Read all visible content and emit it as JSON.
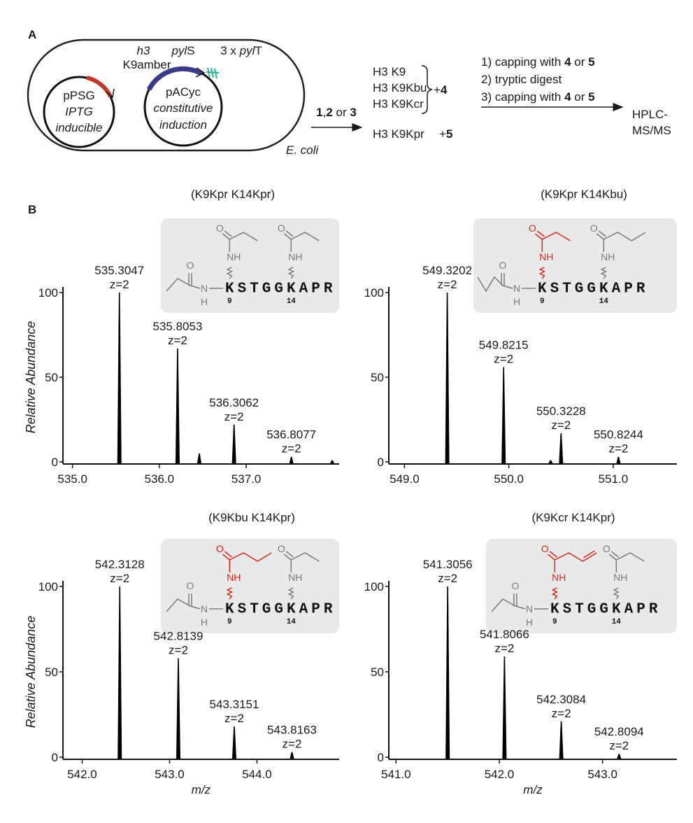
{
  "panel_a": {
    "label": "A",
    "plasmid_1": {
      "gene_italic": "h3",
      "gene": "K9amber",
      "name": "pPSG",
      "note_1": "IPTG",
      "note_2": "inducible"
    },
    "plasmid_2": {
      "gene_1": [
        "pyl",
        "S"
      ],
      "gene_2": [
        "3 x ",
        "pyl",
        "T"
      ],
      "name": "pACyc",
      "note_1": "constitutive",
      "note_2": "induction"
    },
    "organism": "E. coli",
    "reagents": [
      "1",
      ",",
      "2",
      " or ",
      "3"
    ],
    "products": [
      "H3 K9",
      "H3 K9Kbu",
      "H3 K9Kcr"
    ],
    "products_cap": [
      "+",
      "4"
    ],
    "kpr_product": "H3 K9Kpr",
    "kpr_cap": [
      "+",
      "5"
    ],
    "steps": [
      [
        "1) capping with ",
        "4",
        " or ",
        "5"
      ],
      [
        "2) tryptic digest"
      ],
      [
        "3) capping with ",
        "4",
        " or ",
        "5"
      ]
    ],
    "detection": [
      "HPLC-",
      "MS/MS"
    ]
  },
  "panel_b_label": "B",
  "chart_data": [
    {
      "type": "spectrum",
      "title": "(K9Kpr K14Kpr)",
      "color": "#000000",
      "highlight_color": null,
      "x": [
        535.54,
        536.21,
        536.46,
        536.86,
        537.52,
        537.99
      ],
      "values": [
        100,
        67,
        5,
        22,
        3,
        1
      ],
      "peak_labels": [
        "535.3047",
        "535.8053",
        null,
        "536.3062",
        "536.8077",
        null
      ],
      "charge_labels": [
        "z=2",
        "z=2",
        null,
        "z=2",
        "z=2",
        null
      ],
      "xlim": [
        534.89,
        538.07
      ],
      "xticks": [
        {
          "value": 535,
          "label": "535.0"
        },
        {
          "value": 536,
          "label": "536.0"
        },
        {
          "value": 537,
          "label": "537.0"
        }
      ],
      "ylim": [
        0,
        100
      ],
      "yticks": [
        0,
        50,
        100
      ],
      "ylabel": "Relative Abundance",
      "inset": {
        "sequence": "KSTGGKAPR",
        "sites": [
          "9",
          "14"
        ],
        "atoms": [
          "O",
          "NH",
          "O",
          "NH",
          "O",
          "N",
          "H"
        ]
      }
    },
    {
      "type": "spectrum",
      "title": "(K9Kpr K14Kbu)",
      "color": "#000000",
      "highlight_color": "#e0241b",
      "x": [
        549.41,
        549.95,
        550.4,
        550.5,
        551.05
      ],
      "values": [
        100,
        56,
        1,
        17,
        3
      ],
      "peak_labels": [
        "549.3202",
        "549.8215",
        null,
        "550.3228",
        "550.8244"
      ],
      "charge_labels": [
        "z=2",
        "z=2",
        null,
        "z=2",
        "z=2"
      ],
      "xlim": [
        548.85,
        551.61
      ],
      "xticks": [
        {
          "value": 549,
          "label": "549.0"
        },
        {
          "value": 550,
          "label": "550.0"
        },
        {
          "value": 551,
          "label": "551.0"
        }
      ],
      "ylim": [
        0,
        100
      ],
      "yticks": [
        0,
        50,
        100
      ],
      "inset": {
        "sequence": "KSTGGKAPR",
        "sites": [
          "9",
          "14"
        ],
        "atoms": [
          "O",
          "NH",
          "O",
          "NH",
          "O",
          "N",
          "H"
        ]
      }
    },
    {
      "type": "spectrum",
      "title": "(K9Kbu K14Kpr)",
      "color": "#000000",
      "highlight_color": "#e0241b",
      "x": [
        542.43,
        543.1,
        543.74,
        544.4
      ],
      "values": [
        100,
        58,
        18,
        3
      ],
      "peak_labels": [
        "542.3128",
        "542.8139",
        "543.3151",
        "543.8163"
      ],
      "charge_labels": [
        "z=2",
        "z=2",
        "z=2",
        "z=2"
      ],
      "xlim": [
        541.78,
        544.94
      ],
      "xticks": [
        {
          "value": 542,
          "label": "542.0"
        },
        {
          "value": 543,
          "label": "543.0"
        },
        {
          "value": 544,
          "label": "544.0"
        }
      ],
      "ylim": [
        0,
        100
      ],
      "yticks": [
        0,
        50,
        100
      ],
      "ylabel": "Relative Abundance",
      "xlabel": "m/z",
      "inset": {
        "sequence": "KSTGGKAPR",
        "sites": [
          "9",
          "14"
        ],
        "atoms": [
          "O",
          "NH",
          "O",
          "NH",
          "O",
          "N",
          "H"
        ]
      }
    },
    {
      "type": "spectrum",
      "title": "(K9Kcr K14Kpr)",
      "color": "#000000",
      "highlight_color": "#e0241b",
      "x": [
        541.5,
        542.05,
        542.6,
        543.16
      ],
      "values": [
        100,
        59,
        21,
        2
      ],
      "peak_labels": [
        "541.3056",
        "541.8066",
        "542.3084",
        "542.8094"
      ],
      "charge_labels": [
        "z=2",
        "z=2",
        "z=2",
        "z=2"
      ],
      "xlim": [
        540.93,
        543.72
      ],
      "xticks": [
        {
          "value": 541,
          "label": "541.0"
        },
        {
          "value": 542,
          "label": "542.0"
        },
        {
          "value": 543,
          "label": "543.0"
        }
      ],
      "ylim": [
        0,
        100
      ],
      "yticks": [
        0,
        50,
        100
      ],
      "xlabel": "m/z",
      "inset": {
        "sequence": "KSTGGKAPR",
        "sites": [
          "9",
          "14"
        ],
        "atoms": [
          "O",
          "NH",
          "O",
          "NH",
          "O",
          "N",
          "H"
        ]
      }
    }
  ]
}
